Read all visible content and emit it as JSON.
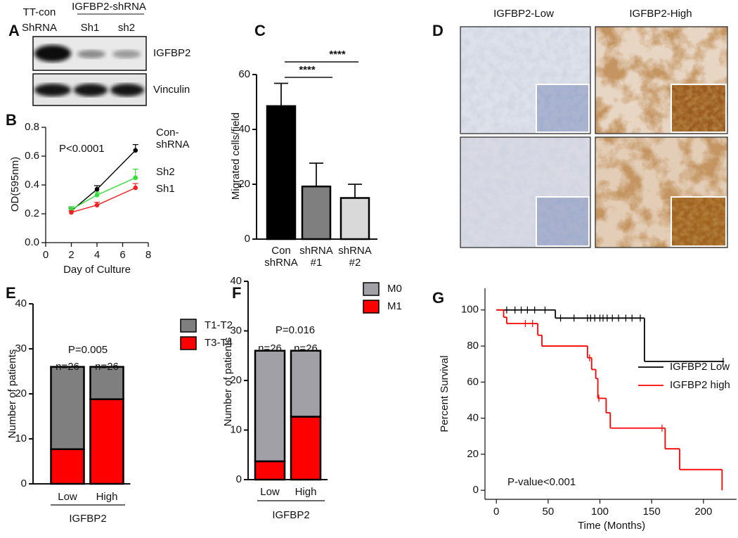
{
  "panel_letters": [
    "A",
    "B",
    "C",
    "D",
    "E",
    "F",
    "G"
  ],
  "blot": {
    "control": [
      "TT-con",
      "ShRNA"
    ],
    "group": "IGFBP2-shRNA",
    "lanes": [
      "Sh1",
      "sh2"
    ],
    "rows": [
      "IGFBP2",
      "Vinculin"
    ]
  },
  "histology": {
    "titles": [
      "IGFBP2-Low",
      "IGFBP2-High"
    ]
  },
  "chart_data": [
    {
      "type": "line",
      "annotation": "P<0.0001",
      "xlabel": "Day of Culture",
      "ylabel": "OD(595nm)",
      "x": [
        2,
        4,
        7
      ],
      "series": [
        {
          "name": "Con-shRNA",
          "color": "#000000",
          "values": [
            0.22,
            0.37,
            0.64
          ],
          "errors": [
            0.02,
            0.025,
            0.04
          ]
        },
        {
          "name": "Sh2",
          "color": "#33dd33",
          "values": [
            0.23,
            0.33,
            0.45
          ],
          "errors": [
            0.02,
            0.02,
            0.06
          ]
        },
        {
          "name": "Sh1",
          "color": "#ee2222",
          "values": [
            0.21,
            0.26,
            0.38
          ],
          "errors": [
            0.01,
            0.02,
            0.03
          ]
        }
      ],
      "xlim": [
        0,
        8
      ],
      "xticks": [
        0,
        2,
        4,
        6,
        8
      ],
      "ylim": [
        0,
        0.8
      ],
      "yticks": [
        {
          "value": 0,
          "label": "0.0"
        },
        0.2,
        0.4,
        0.6,
        0.8
      ]
    },
    {
      "type": "bar",
      "ylabel": "Migrated cells/field",
      "categories": [
        "Con shRNA",
        "shRNA #1",
        "shRNA #2"
      ],
      "values": [
        48.5,
        19.2,
        15
      ],
      "errors": [
        8.3,
        8.5,
        5
      ],
      "colors": [
        "#000000",
        "#7f7f7f",
        "#d9d9d9"
      ],
      "significance": [
        "****",
        "****"
      ],
      "ylim": [
        0,
        60
      ],
      "yticks": [
        0,
        20,
        40,
        60
      ]
    },
    {
      "type": "stacked_bar",
      "annotation": "P=0.005",
      "group_label": "IGFBP2",
      "ylabel": "Number of patients",
      "categories": [
        "Low",
        "High"
      ],
      "bar_labels": [
        "n=26",
        "n=26"
      ],
      "series": [
        {
          "name": "T3-T4",
          "color": "#ff0000",
          "values": [
            7.7,
            18.8
          ]
        },
        {
          "name": "T1-T2",
          "color": "#7f7f7f",
          "values": [
            18.3,
            7.2
          ]
        }
      ],
      "ylim": [
        0,
        40
      ],
      "yticks": [
        0,
        10,
        20,
        30,
        40
      ]
    },
    {
      "type": "stacked_bar",
      "annotation": "P=0.016",
      "group_label": "IGFBP2",
      "ylabel": "Number of patients",
      "categories": [
        "Low",
        "High"
      ],
      "bar_labels": [
        "n=26",
        "n=26"
      ],
      "series": [
        {
          "name": "M1",
          "color": "#ff0000",
          "values": [
            3.7,
            12.7
          ]
        },
        {
          "name": "M0",
          "color": "#a0a0a6",
          "values": [
            22.3,
            13.3
          ]
        }
      ],
      "ylim": [
        0,
        40
      ],
      "yticks": [
        0,
        10,
        20,
        30,
        40
      ]
    },
    {
      "type": "survival",
      "annotation": "P-value<0.001",
      "xlabel": "Time (Months)",
      "ylabel": "Percent Survival",
      "series": [
        {
          "name": "IGFBP2 Low",
          "color": "#000000",
          "x": [
            0,
            57,
            143,
            220
          ],
          "values": [
            100,
            95.5,
            71.5,
            71.5
          ],
          "censored": [
            10,
            18,
            24,
            30,
            37,
            47,
            62,
            75,
            88,
            91,
            95,
            100,
            103,
            107,
            112,
            118,
            125,
            131,
            139,
            219
          ]
        },
        {
          "name": "IGFBP2 high",
          "color": "#ff0000",
          "x": [
            0,
            7,
            10,
            40,
            44,
            88,
            92,
            96,
            98,
            106,
            110,
            163,
            177,
            218
          ],
          "values": [
            100,
            96,
            92.5,
            86,
            80,
            73.5,
            67,
            62,
            51,
            43,
            34.5,
            23,
            11.5,
            0
          ],
          "censored": [
            28,
            35,
            90,
            99,
            160
          ]
        }
      ],
      "xlim": [
        -11,
        232
      ],
      "xticks": [
        0,
        50,
        100,
        150,
        200
      ],
      "ylim": [
        -5,
        112
      ],
      "yticks": [
        0,
        20,
        40,
        60,
        80,
        100
      ]
    }
  ]
}
